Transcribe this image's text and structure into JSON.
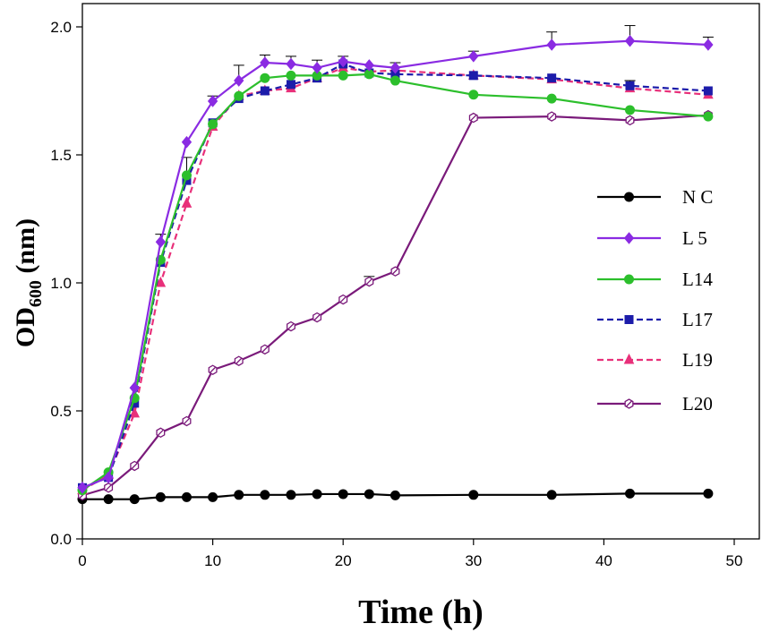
{
  "chart_data": {
    "type": "line",
    "title": "",
    "xlabel": "Time (h)",
    "ylabel": "OD",
    "ylabel_subscript": "600",
    "ylabel_unit": " (nm)",
    "xlim": [
      0,
      50
    ],
    "ylim": [
      0.0,
      2.0
    ],
    "xticks": [
      0,
      10,
      20,
      30,
      40,
      50
    ],
    "yticks": [
      0.0,
      0.5,
      1.0,
      1.5,
      2.0
    ],
    "xtick_labels": [
      "0",
      "10",
      "20",
      "30",
      "40",
      "50"
    ],
    "ytick_labels": [
      "0.0",
      "0.5",
      "1.0",
      "1.5",
      "2.0"
    ],
    "grid": false,
    "legend_position": "right",
    "series": [
      {
        "name": "N C",
        "color": "#000000",
        "marker": "circle",
        "dashed": false,
        "x": [
          0,
          2,
          4,
          6,
          8,
          10,
          12,
          14,
          16,
          18,
          20,
          22,
          24,
          30,
          36,
          42,
          48
        ],
        "values": [
          0.155,
          0.155,
          0.155,
          0.163,
          0.163,
          0.163,
          0.172,
          0.172,
          0.172,
          0.175,
          0.175,
          0.175,
          0.17,
          0.172,
          0.172,
          0.177,
          0.177
        ],
        "errors": [
          0,
          0,
          0,
          0,
          0,
          0,
          0,
          0,
          0,
          0,
          0,
          0,
          0,
          0,
          0,
          0,
          0
        ]
      },
      {
        "name": "L 5",
        "color": "#8a2be2",
        "marker": "diamond",
        "dashed": false,
        "x": [
          0,
          2,
          4,
          6,
          8,
          10,
          12,
          14,
          16,
          18,
          20,
          22,
          24,
          30,
          36,
          42,
          48
        ],
        "values": [
          0.2,
          0.24,
          0.59,
          1.16,
          1.55,
          1.71,
          1.79,
          1.86,
          1.855,
          1.84,
          1.865,
          1.85,
          1.84,
          1.885,
          1.93,
          1.945,
          1.93
        ],
        "errors": [
          0,
          0,
          0,
          0.03,
          0,
          0.02,
          0.06,
          0.03,
          0.03,
          0.03,
          0.02,
          0,
          0.02,
          0.02,
          0.05,
          0.06,
          0.03
        ]
      },
      {
        "name": "L14",
        "color": "#2cbf2c",
        "marker": "circle",
        "dashed": false,
        "x": [
          0,
          2,
          4,
          6,
          8,
          10,
          12,
          14,
          16,
          18,
          20,
          22,
          24,
          30,
          36,
          42,
          48
        ],
        "values": [
          0.19,
          0.26,
          0.55,
          1.09,
          1.42,
          1.62,
          1.73,
          1.8,
          1.81,
          1.81,
          1.81,
          1.815,
          1.79,
          1.735,
          1.72,
          1.675,
          1.65
        ],
        "errors": [
          0,
          0,
          0,
          0,
          0.07,
          0,
          0,
          0,
          0,
          0,
          0,
          0,
          0,
          0,
          0,
          0,
          0
        ]
      },
      {
        "name": "L17",
        "color": "#1c1caa",
        "marker": "square",
        "dashed": true,
        "x": [
          0,
          2,
          4,
          6,
          8,
          10,
          12,
          14,
          16,
          18,
          20,
          22,
          24,
          30,
          36,
          42,
          48
        ],
        "values": [
          0.2,
          0.24,
          0.53,
          1.08,
          1.4,
          1.625,
          1.72,
          1.75,
          1.775,
          1.8,
          1.855,
          1.82,
          1.815,
          1.81,
          1.8,
          1.77,
          1.75
        ],
        "errors": [
          0,
          0,
          0,
          0,
          0,
          0,
          0,
          0,
          0,
          0,
          0,
          0,
          0,
          0,
          0,
          0.02,
          0
        ]
      },
      {
        "name": "L19",
        "color": "#e8307a",
        "marker": "triangle",
        "dashed": true,
        "x": [
          0,
          2,
          4,
          6,
          8,
          10,
          12,
          14,
          16,
          18,
          20,
          22,
          24,
          30,
          36,
          42,
          48
        ],
        "values": [
          0.19,
          0.25,
          0.49,
          1.0,
          1.31,
          1.61,
          1.73,
          1.75,
          1.76,
          1.8,
          1.84,
          1.825,
          1.83,
          1.81,
          1.795,
          1.76,
          1.735
        ],
        "errors": [
          0,
          0,
          0,
          0,
          0,
          0,
          0,
          0,
          0,
          0,
          0,
          0,
          0,
          0,
          0,
          0.03,
          0
        ]
      },
      {
        "name": "L20",
        "color": "#7a1a7a",
        "marker": "hexagon",
        "dashed": false,
        "x": [
          0,
          2,
          4,
          6,
          8,
          10,
          12,
          14,
          16,
          18,
          20,
          22,
          24,
          30,
          36,
          42,
          48
        ],
        "values": [
          0.17,
          0.2,
          0.285,
          0.415,
          0.46,
          0.66,
          0.695,
          0.74,
          0.83,
          0.865,
          0.935,
          1.005,
          1.045,
          1.645,
          1.65,
          1.635,
          1.655
        ],
        "errors": [
          0,
          0,
          0,
          0,
          0,
          0,
          0,
          0,
          0,
          0,
          0,
          0.02,
          0,
          0,
          0,
          0,
          0
        ]
      }
    ]
  }
}
